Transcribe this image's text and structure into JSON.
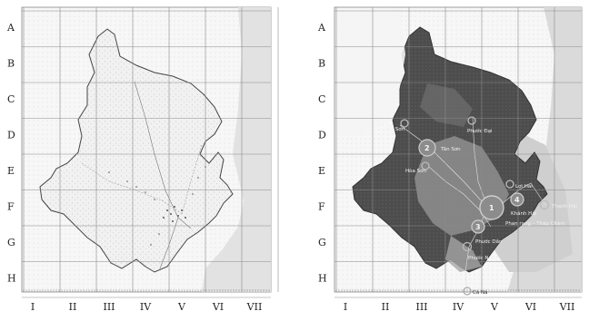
{
  "rows": [
    "A",
    "B",
    "C",
    "D",
    "E",
    "F",
    "G",
    "H"
  ],
  "cols": [
    "I",
    "II",
    "III",
    "IV",
    "V",
    "VI",
    "VII"
  ],
  "places": [
    {
      "name": "Mỹ Sơn",
      "num": ""
    },
    {
      "name": "Phước Đại",
      "num": ""
    },
    {
      "name": "Tân Sơn",
      "num": "2"
    },
    {
      "name": "Hòa Sơn",
      "num": ""
    },
    {
      "name": "Lợi Hải",
      "num": ""
    },
    {
      "name": "Khánh Hải",
      "num": "4"
    },
    {
      "name": "Thanh Hải",
      "num": ""
    },
    {
      "name": "Phan rang – Tháp Chàm",
      "num": "1"
    },
    {
      "name": "Phước Dân",
      "num": "3"
    },
    {
      "name": "Phước Nam",
      "num": ""
    },
    {
      "name": "Cà Ná",
      "num": ""
    }
  ],
  "colors": {
    "grid": "#8a8a8a",
    "sea": "#d6d6d6",
    "land_dark": "#4a4a4a",
    "land_mid": "#8c8c8c",
    "outline": "#555555"
  }
}
